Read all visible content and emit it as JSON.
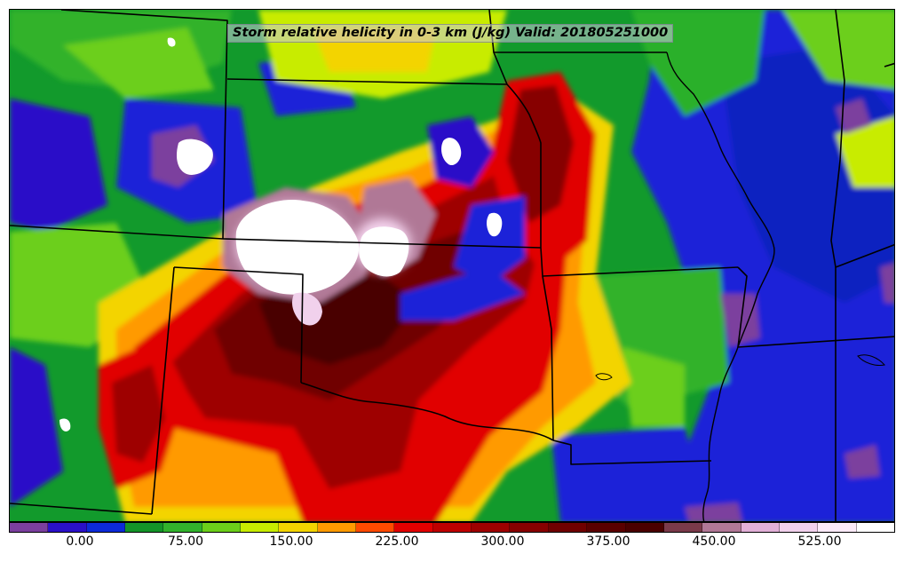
{
  "map": {
    "title": "Storm relative helicity in 0-3 km (J/kg) Valid: 201805251000",
    "field": "storm-relative-helicity-0-3km",
    "region": "southern-great-plains",
    "boundaries_color": "#000000"
  },
  "colorbar": {
    "colors": [
      "#7b3f9e",
      "#2a10c8",
      "#0c2ad8",
      "#139428",
      "#31b22c",
      "#6ccf1a",
      "#c8ec00",
      "#f3d400",
      "#ff9a00",
      "#ff4a00",
      "#e10000",
      "#bf0000",
      "#9e0000",
      "#870000",
      "#6f0000",
      "#5a0000",
      "#4a0000",
      "#7a3a4a",
      "#b07896",
      "#e2b0d8",
      "#f1d1ec",
      "#fbeaf8",
      "#ffffff"
    ],
    "tick_labels": [
      "0.00",
      "75.00",
      "150.00",
      "225.00",
      "300.00",
      "375.00",
      "450.00",
      "525.00"
    ]
  }
}
